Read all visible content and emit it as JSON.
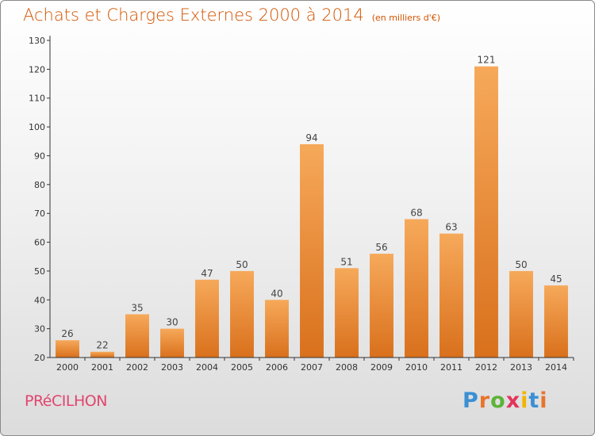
{
  "title": "Achats et Charges Externes 2000 à 2014",
  "subtitle": "(en milliers d'€)",
  "commune": "PRéCILHON",
  "logo": {
    "text": "Proxiti",
    "letter_colors": [
      "#3b8fd4",
      "#e8742a",
      "#5cb338",
      "#e2345c",
      "#f2b400",
      "#3b8fd4",
      "#e8742a"
    ]
  },
  "colors": {
    "bar_light": "#f6a95a",
    "bar_dark": "#d9701c",
    "title": "#d35400",
    "commune": "#e1456e",
    "axis": "#333333"
  },
  "chart_data": {
    "type": "bar",
    "categories": [
      "2000",
      "2001",
      "2002",
      "2003",
      "2004",
      "2005",
      "2006",
      "2007",
      "2008",
      "2009",
      "2010",
      "2011",
      "2012",
      "2013",
      "2014"
    ],
    "values": [
      26,
      22,
      35,
      30,
      47,
      50,
      40,
      94,
      51,
      56,
      68,
      63,
      121,
      50,
      45
    ],
    "ylim": [
      20,
      130
    ],
    "yticks": [
      20,
      30,
      40,
      50,
      60,
      70,
      80,
      90,
      100,
      110,
      120,
      130
    ],
    "grid": false,
    "xlabel": "",
    "ylabel": ""
  }
}
